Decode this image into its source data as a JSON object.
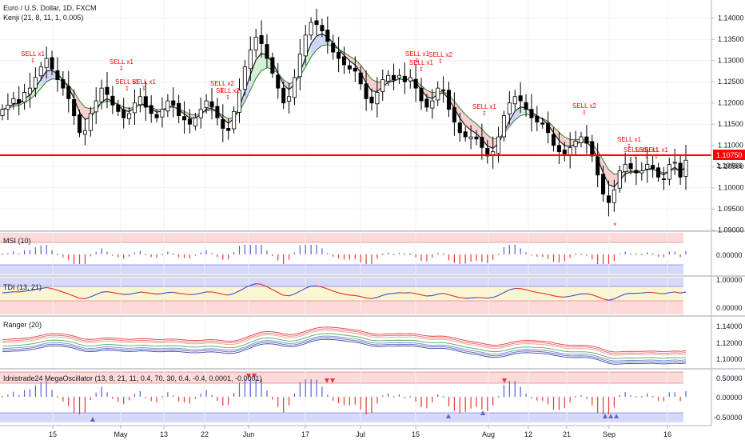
{
  "header": {
    "symbol": "Euro / U.S. Dollar, 1D, FXCM",
    "indicator": "Kenji (21, 8, 11, 1, 0.005)"
  },
  "price_axis": {
    "ticks": [
      "1.14000",
      "1.13500",
      "1.13000",
      "1.12500",
      "1.12000",
      "1.11500",
      "1.11000",
      "1.10500",
      "1.10000",
      "1.09500",
      "1.09000"
    ],
    "last_price": "1.10666",
    "hline_label": "1.10750"
  },
  "signals": [
    "SELL x1",
    "SELL x1",
    "SELL x1",
    "SELL x1",
    "SELL x2",
    "SELL x2",
    "SELL x1",
    "SELL x1",
    "SELL x2",
    "SELL x1",
    "SELL x2",
    "SELL x1",
    "SELL x1",
    "SELL x1",
    "SELL x1",
    "×"
  ],
  "panels": {
    "msi": {
      "label": "MSI (10)",
      "ticks": [
        "0.00000"
      ]
    },
    "tdi": {
      "label": "TDI (13, 21)",
      "ticks": [
        "1.00000",
        "0.00000"
      ]
    },
    "ranger": {
      "label": "Ranger (20)",
      "ticks": [
        "1.14000",
        "1.12000",
        "1.10000"
      ]
    },
    "mega": {
      "label": "Idnistrade24 MegaOscillator (13, 8, 21, 11, 0.4, 70, 30, 0.4, -0.4, 0.0001, -0.0001)",
      "ticks": [
        "0.50000",
        "0.00000",
        "-0.50000"
      ]
    }
  },
  "date_axis": [
    "15",
    "May",
    "13",
    "22",
    "Jun",
    "17",
    "Jul",
    "15",
    "Aug",
    "12",
    "21",
    "Sep",
    "16"
  ],
  "colors": {
    "bull": "#ffffff",
    "bear": "#000000",
    "hline": "#ff0000",
    "signal": "#ff0000",
    "cloud_red": "#f8c8c8",
    "cloud_blue": "#c8ccf4",
    "cloud_green": "#cdeecf",
    "band_red": "#fcdada",
    "band_blue": "#d6d9f8",
    "band_yellow": "#fbf6d2"
  },
  "chart_data": {
    "type": "candlestick",
    "title": "Euro / U.S. Dollar, 1D, FXCM",
    "y_axis_ticks": [
      1.14,
      1.135,
      1.13,
      1.125,
      1.12,
      1.115,
      1.11,
      1.105,
      1.1,
      1.095,
      1.09
    ],
    "ylim": [
      1.09,
      1.142
    ],
    "horizontal_line": 1.1075,
    "last_price": 1.10666,
    "x_tick_labels": [
      "15",
      "May",
      "13",
      "22",
      "Jun",
      "17",
      "Jul",
      "15",
      "Aug",
      "12",
      "21",
      "Sep",
      "16"
    ],
    "ohlc_close_estimates": [
      1.1185,
      1.1195,
      1.121,
      1.12,
      1.1225,
      1.1235,
      1.126,
      1.1285,
      1.1305,
      1.128,
      1.1255,
      1.1235,
      1.121,
      1.117,
      1.113,
      1.1135,
      1.1175,
      1.1205,
      1.1235,
      1.122,
      1.1195,
      1.118,
      1.1165,
      1.1175,
      1.12,
      1.1215,
      1.119,
      1.1175,
      1.1165,
      1.1185,
      1.1205,
      1.1195,
      1.117,
      1.116,
      1.115,
      1.1165,
      1.1185,
      1.1205,
      1.119,
      1.1165,
      1.114,
      1.1135,
      1.118,
      1.123,
      1.1285,
      1.1325,
      1.1355,
      1.134,
      1.1305,
      1.127,
      1.1235,
      1.12,
      1.1215,
      1.126,
      1.1315,
      1.136,
      1.139,
      1.1385,
      1.137,
      1.1345,
      1.132,
      1.1305,
      1.129,
      1.128,
      1.1275,
      1.1245,
      1.121,
      1.12,
      1.1225,
      1.1255,
      1.1265,
      1.1255,
      1.1265,
      1.125,
      1.126,
      1.1235,
      1.1205,
      1.119,
      1.1205,
      1.1235,
      1.123,
      1.1185,
      1.1155,
      1.113,
      1.112,
      1.112,
      1.1115,
      1.1095,
      1.1075,
      1.1085,
      1.112,
      1.117,
      1.12,
      1.1215,
      1.1205,
      1.1185,
      1.1165,
      1.1155,
      1.115,
      1.113,
      1.11,
      1.1085,
      1.108,
      1.1095,
      1.111,
      1.112,
      1.1105,
      1.1075,
      1.103,
      1.0985,
      1.0965,
      1.0995,
      1.104,
      1.1055,
      1.1045,
      1.1035,
      1.104,
      1.1055,
      1.1045,
      1.1025,
      1.102,
      1.1055,
      1.106,
      1.1025,
      1.1065
    ]
  }
}
